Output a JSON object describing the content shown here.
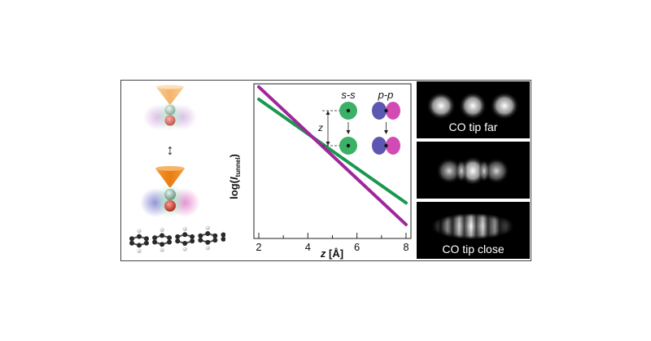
{
  "schematic": {
    "near_far_arrow": "↕"
  },
  "chart_data": {
    "type": "line",
    "title": "",
    "xlabel": "z [Å]",
    "xlabel_var": "z",
    "xlabel_unit": "[Å]",
    "ylabel": "log(I_tunnel)",
    "ylabel_main": "log(",
    "ylabel_var": "I",
    "ylabel_sub": "tunnel",
    "ylabel_close": ")",
    "xlim": [
      1.8,
      8.2
    ],
    "ylim": [
      0,
      10
    ],
    "xticks": [
      2,
      4,
      6,
      8
    ],
    "xtick_labels": [
      "2",
      "4",
      "6",
      "8"
    ],
    "series": [
      {
        "name": "s-s",
        "color": "#1a9850",
        "x": [
          2,
          8
        ],
        "y": [
          9.0,
          2.3
        ]
      },
      {
        "name": "p-p",
        "color": "#a0279b",
        "x": [
          2,
          8
        ],
        "y": [
          9.8,
          0.9
        ]
      }
    ],
    "inset": {
      "ss_label": "s-s",
      "pp_label": "p-p",
      "z_label": "z"
    }
  },
  "stm_images": [
    {
      "caption": "CO tip far"
    },
    {
      "caption": ""
    },
    {
      "caption": "CO tip close"
    }
  ],
  "colors": {
    "green_series": "#1a9850",
    "purple_series": "#a0279b",
    "tip_orange": "#f39c3c"
  }
}
